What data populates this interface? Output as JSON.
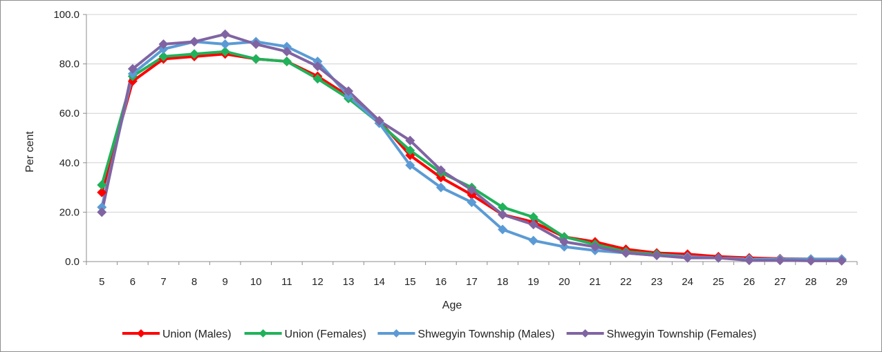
{
  "chart_data": {
    "type": "line",
    "title": "",
    "xlabel": "Age",
    "ylabel": "Per cent",
    "ylim": [
      0,
      100
    ],
    "yticks": [
      "0.0",
      "20.0",
      "40.0",
      "60.0",
      "80.0",
      "100.0"
    ],
    "ytick_values": [
      0,
      20,
      40,
      60,
      80,
      100
    ],
    "grid": true,
    "legend_position": "bottom",
    "x": [
      "5",
      "6",
      "7",
      "8",
      "9",
      "10",
      "11",
      "12",
      "13",
      "14",
      "15",
      "16",
      "17",
      "18",
      "19",
      "20",
      "21",
      "22",
      "23",
      "24",
      "25",
      "26",
      "27",
      "28",
      "29"
    ],
    "series": [
      {
        "name": "Union (Males)",
        "color": "#ff0000",
        "marker": "diamond",
        "values": [
          28,
          73,
          82,
          83,
          84,
          82,
          81,
          75,
          67,
          57,
          43,
          34,
          27,
          19,
          16,
          10,
          8,
          5,
          3.5,
          3,
          2,
          1.5,
          1.2,
          1,
          1
        ]
      },
      {
        "name": "Union (Females)",
        "color": "#1fb25a",
        "marker": "diamond",
        "values": [
          31,
          75,
          83,
          84,
          85,
          82,
          81,
          74,
          66,
          56,
          45,
          36,
          30,
          22,
          18,
          10,
          7,
          4,
          3,
          2,
          1.5,
          1,
          1,
          1,
          0.8
        ]
      },
      {
        "name": "Shwegyin Township (Males)",
        "color": "#5b9bd5",
        "marker": "diamond",
        "values": [
          22,
          76,
          86,
          89,
          88,
          89,
          87,
          81,
          67,
          56,
          39,
          30,
          24,
          13,
          8.5,
          6,
          4.5,
          3.5,
          2.5,
          2,
          1.5,
          1,
          1,
          1,
          1
        ]
      },
      {
        "name": "Shwegyin Township (Females)",
        "color": "#8064a2",
        "marker": "diamond",
        "values": [
          20,
          78,
          88,
          89,
          92,
          88,
          85,
          79,
          69,
          57,
          49,
          37,
          29,
          19,
          15,
          8,
          6,
          3.5,
          2.5,
          1.5,
          1.5,
          0.5,
          0.5,
          0.3,
          0.3
        ]
      }
    ]
  }
}
